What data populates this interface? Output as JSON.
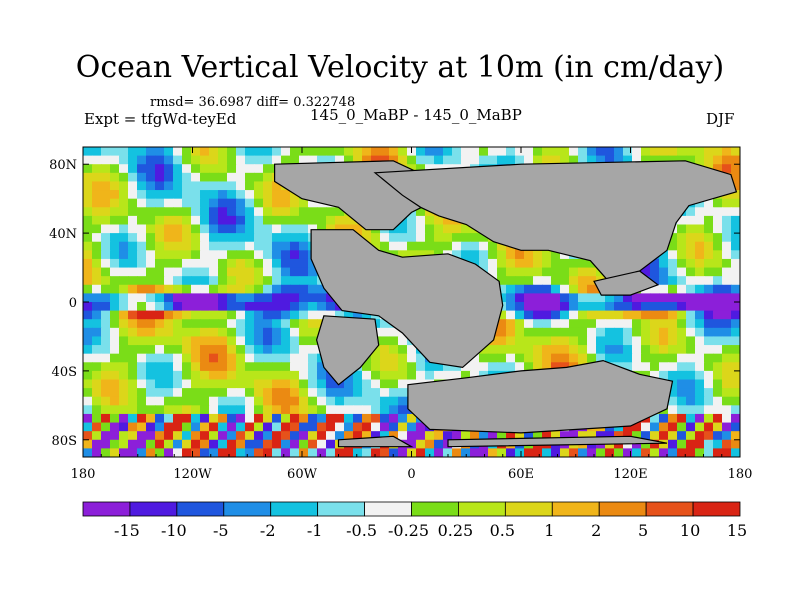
{
  "chart_data": {
    "type": "heatmap",
    "title": "Ocean Vertical Velocity at 10m (in cm/day)",
    "stats_text": "rmsd= 36.6987 diff= 0.322748",
    "left_label": "Expt = tfgWd-teyEd",
    "center_label": "145_0_MaBP - 145_0_MaBP",
    "right_label": "DJF",
    "xlim": [
      -180,
      180
    ],
    "ylim": [
      -90,
      90
    ],
    "x_ticks": [
      {
        "value": -180,
        "label": "180"
      },
      {
        "value": -120,
        "label": "120W"
      },
      {
        "value": -60,
        "label": "60W"
      },
      {
        "value": 0,
        "label": "0"
      },
      {
        "value": 60,
        "label": "60E"
      },
      {
        "value": 120,
        "label": "120E"
      },
      {
        "value": 180,
        "label": "180"
      }
    ],
    "y_ticks": [
      {
        "value": 80,
        "label": "80N"
      },
      {
        "value": 40,
        "label": "40N"
      },
      {
        "value": 0,
        "label": "0"
      },
      {
        "value": -40,
        "label": "40S"
      },
      {
        "value": -80,
        "label": "80S"
      }
    ],
    "colorbar": {
      "colors": [
        "#8c1fd9",
        "#4f1ae0",
        "#1f56de",
        "#1f8ee6",
        "#14c2e0",
        "#7ae0eb",
        "#f2f2f2",
        "#7add18",
        "#b8e61a",
        "#dcd61a",
        "#f0b51a",
        "#eb8a12",
        "#e6521a",
        "#d92414"
      ],
      "labels": [
        "-15",
        "-10",
        "-5",
        "-2",
        "-1",
        "-0.5",
        "-0.25",
        "0.25",
        "0.5",
        "1",
        "2",
        "5",
        "10",
        "15"
      ]
    },
    "land_color": "#a6a6a6"
  }
}
